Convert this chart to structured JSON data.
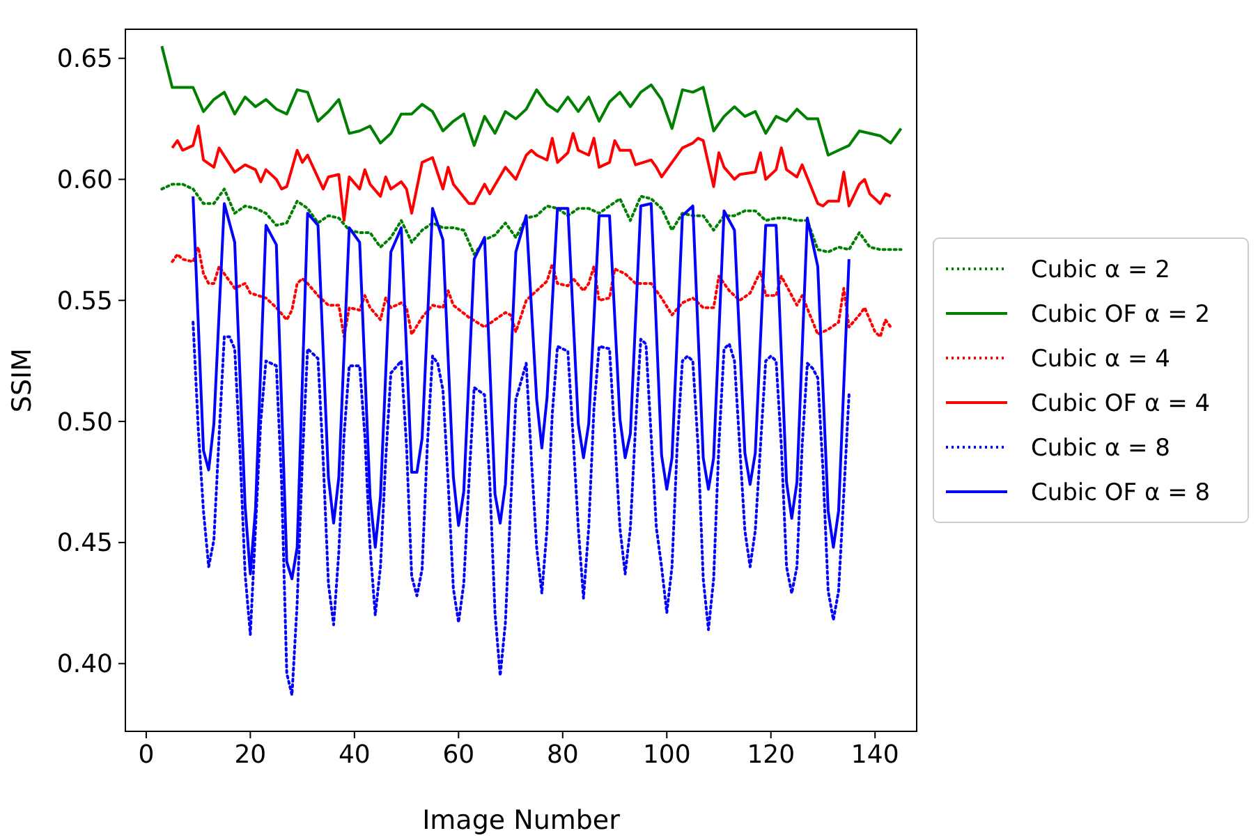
{
  "chart_data": {
    "type": "line",
    "xlabel": "Image Number",
    "ylabel": "SSIM",
    "xlim": [
      -4,
      148
    ],
    "ylim": [
      0.372,
      0.662
    ],
    "xticks": [
      0,
      20,
      40,
      60,
      80,
      100,
      120,
      140
    ],
    "yticks": [
      {
        "value": 0.4,
        "label": "0.40"
      },
      {
        "value": 0.45,
        "label": "0.45"
      },
      {
        "value": 0.5,
        "label": "0.50"
      },
      {
        "value": 0.55,
        "label": "0.55"
      },
      {
        "value": 0.6,
        "label": "0.60"
      },
      {
        "value": 0.65,
        "label": "0.65"
      }
    ],
    "grid": false,
    "legend": "right",
    "marker": "none",
    "series": [
      {
        "name": "Cubic α = 2",
        "color": "#008000",
        "line_style": "dotted",
        "x": [
          3,
          5,
          7,
          9,
          10,
          11,
          13,
          15,
          17,
          19,
          21,
          23,
          25,
          27,
          29,
          31,
          33,
          35,
          37,
          39,
          41,
          43,
          45,
          47,
          49,
          51,
          53,
          55,
          57,
          59,
          61,
          63,
          65,
          67,
          69,
          71,
          73,
          75,
          77,
          79,
          81,
          83,
          85,
          87,
          89,
          91,
          93,
          95,
          97,
          99,
          101,
          103,
          105,
          107,
          109,
          111,
          113,
          115,
          117,
          119,
          121,
          123,
          125,
          127,
          129,
          131,
          133,
          135,
          137,
          139,
          141,
          143,
          145
        ],
        "values": [
          0.596,
          0.598,
          0.598,
          0.596,
          0.593,
          0.59,
          0.59,
          0.596,
          0.586,
          0.589,
          0.588,
          0.586,
          0.581,
          0.582,
          0.591,
          0.588,
          0.582,
          0.585,
          0.584,
          0.579,
          0.578,
          0.578,
          0.572,
          0.576,
          0.583,
          0.574,
          0.579,
          0.582,
          0.58,
          0.58,
          0.579,
          0.569,
          0.575,
          0.577,
          0.582,
          0.576,
          0.584,
          0.585,
          0.589,
          0.588,
          0.585,
          0.588,
          0.588,
          0.586,
          0.589,
          0.592,
          0.583,
          0.593,
          0.592,
          0.588,
          0.579,
          0.586,
          0.585,
          0.585,
          0.579,
          0.585,
          0.585,
          0.587,
          0.587,
          0.583,
          0.584,
          0.584,
          0.583,
          0.583,
          0.571,
          0.57,
          0.572,
          0.571,
          0.578,
          0.572,
          0.571,
          0.571,
          0.571
        ]
      },
      {
        "name": "Cubic OF α = 2",
        "color": "#008000",
        "line_style": "solid",
        "x": [
          3,
          5,
          7,
          9,
          11,
          13,
          15,
          17,
          19,
          21,
          23,
          25,
          27,
          29,
          31,
          33,
          35,
          37,
          39,
          41,
          43,
          45,
          47,
          49,
          51,
          53,
          55,
          57,
          59,
          61,
          63,
          65,
          67,
          69,
          71,
          73,
          75,
          77,
          79,
          81,
          83,
          85,
          87,
          89,
          91,
          93,
          95,
          97,
          99,
          101,
          103,
          105,
          107,
          109,
          111,
          113,
          115,
          117,
          119,
          121,
          123,
          125,
          127,
          129,
          131,
          133,
          135,
          137,
          139,
          141,
          143,
          145
        ],
        "values": [
          0.655,
          0.638,
          0.638,
          0.638,
          0.628,
          0.633,
          0.636,
          0.627,
          0.634,
          0.63,
          0.633,
          0.629,
          0.627,
          0.637,
          0.636,
          0.624,
          0.628,
          0.633,
          0.619,
          0.62,
          0.622,
          0.615,
          0.619,
          0.627,
          0.627,
          0.631,
          0.628,
          0.62,
          0.624,
          0.627,
          0.614,
          0.626,
          0.619,
          0.628,
          0.625,
          0.629,
          0.637,
          0.631,
          0.628,
          0.634,
          0.628,
          0.634,
          0.624,
          0.632,
          0.636,
          0.63,
          0.636,
          0.639,
          0.633,
          0.621,
          0.637,
          0.636,
          0.638,
          0.62,
          0.626,
          0.63,
          0.626,
          0.628,
          0.619,
          0.626,
          0.624,
          0.629,
          0.625,
          0.625,
          0.61,
          0.612,
          0.614,
          0.62,
          0.619,
          0.618,
          0.615,
          0.621
        ]
      },
      {
        "name": "Cubic α = 4",
        "color": "#ff0000",
        "line_style": "dotted",
        "x": [
          5,
          6,
          7,
          9,
          10,
          11,
          12,
          13,
          14,
          15,
          17,
          19,
          20,
          23,
          25,
          27,
          28,
          29,
          30,
          31,
          33,
          35,
          37,
          38,
          39,
          41,
          42,
          43,
          45,
          46,
          47,
          49,
          50,
          51,
          53,
          55,
          57,
          58,
          59,
          62,
          65,
          67,
          69,
          70,
          71,
          73,
          75,
          77,
          78,
          79,
          81,
          82,
          84,
          85,
          86,
          87,
          89,
          90,
          92,
          94,
          97,
          99,
          101,
          103,
          105,
          107,
          109,
          110,
          112,
          114,
          116,
          118,
          119,
          121,
          122,
          125,
          126,
          129,
          131,
          133,
          134,
          135,
          137,
          138,
          140,
          141,
          142,
          143
        ],
        "values": [
          0.566,
          0.569,
          0.567,
          0.566,
          0.572,
          0.561,
          0.557,
          0.557,
          0.564,
          0.561,
          0.555,
          0.557,
          0.553,
          0.551,
          0.547,
          0.542,
          0.546,
          0.557,
          0.559,
          0.557,
          0.552,
          0.548,
          0.548,
          0.535,
          0.547,
          0.546,
          0.552,
          0.547,
          0.542,
          0.551,
          0.547,
          0.549,
          0.547,
          0.536,
          0.543,
          0.548,
          0.547,
          0.554,
          0.548,
          0.543,
          0.539,
          0.542,
          0.545,
          0.544,
          0.537,
          0.55,
          0.554,
          0.558,
          0.565,
          0.557,
          0.556,
          0.559,
          0.554,
          0.557,
          0.564,
          0.55,
          0.551,
          0.563,
          0.561,
          0.557,
          0.557,
          0.551,
          0.544,
          0.549,
          0.551,
          0.547,
          0.547,
          0.56,
          0.554,
          0.55,
          0.553,
          0.562,
          0.552,
          0.552,
          0.56,
          0.548,
          0.552,
          0.536,
          0.538,
          0.541,
          0.555,
          0.539,
          0.544,
          0.547,
          0.537,
          0.535,
          0.542,
          0.539
        ]
      },
      {
        "name": "Cubic OF α = 4",
        "color": "#ff0000",
        "line_style": "solid",
        "x": [
          5,
          6,
          7,
          9,
          10,
          11,
          13,
          14,
          17,
          19,
          21,
          22,
          23,
          25,
          26,
          27,
          29,
          30,
          31,
          34,
          35,
          37,
          38,
          39,
          41,
          42,
          43,
          45,
          46,
          47,
          49,
          50,
          51,
          53,
          55,
          57,
          58,
          59,
          62,
          63,
          65,
          66,
          69,
          71,
          73,
          74,
          75,
          77,
          78,
          79,
          81,
          82,
          83,
          85,
          86,
          87,
          89,
          90,
          91,
          93,
          94,
          97,
          98,
          99,
          101,
          103,
          105,
          106,
          107,
          109,
          110,
          111,
          113,
          114,
          117,
          118,
          119,
          121,
          122,
          123,
          125,
          126,
          129,
          130,
          131,
          133,
          134,
          135,
          137,
          138,
          139,
          141,
          142,
          143
        ],
        "values": [
          0.613,
          0.616,
          0.612,
          0.614,
          0.622,
          0.608,
          0.605,
          0.613,
          0.603,
          0.606,
          0.604,
          0.599,
          0.604,
          0.6,
          0.596,
          0.597,
          0.612,
          0.607,
          0.61,
          0.596,
          0.601,
          0.602,
          0.583,
          0.601,
          0.596,
          0.604,
          0.598,
          0.593,
          0.601,
          0.596,
          0.599,
          0.596,
          0.586,
          0.607,
          0.609,
          0.596,
          0.605,
          0.598,
          0.59,
          0.59,
          0.598,
          0.594,
          0.605,
          0.6,
          0.61,
          0.612,
          0.61,
          0.608,
          0.617,
          0.607,
          0.611,
          0.619,
          0.612,
          0.61,
          0.617,
          0.605,
          0.607,
          0.616,
          0.612,
          0.612,
          0.606,
          0.608,
          0.605,
          0.601,
          0.607,
          0.613,
          0.615,
          0.617,
          0.616,
          0.597,
          0.611,
          0.605,
          0.6,
          0.602,
          0.603,
          0.611,
          0.6,
          0.604,
          0.613,
          0.604,
          0.601,
          0.606,
          0.59,
          0.589,
          0.591,
          0.591,
          0.603,
          0.589,
          0.598,
          0.6,
          0.594,
          0.59,
          0.594,
          0.593
        ]
      },
      {
        "name": "Cubic α = 8",
        "color": "#0000ff",
        "line_style": "dotted",
        "x": [
          9,
          10,
          11,
          12,
          13,
          14,
          15,
          16,
          17,
          18,
          19,
          20,
          21,
          22,
          23,
          25,
          26,
          27,
          28,
          29,
          30,
          31,
          33,
          34,
          35,
          36,
          37,
          38,
          39,
          41,
          42,
          43,
          44,
          45,
          46,
          47,
          49,
          50,
          51,
          52,
          53,
          54,
          55,
          56,
          57,
          58,
          59,
          60,
          61,
          62,
          63,
          65,
          66,
          67,
          68,
          69,
          70,
          71,
          73,
          74,
          75,
          76,
          77,
          78,
          79,
          81,
          82,
          83,
          84,
          85,
          86,
          87,
          89,
          90,
          91,
          92,
          93,
          94,
          95,
          96,
          97,
          98,
          99,
          100,
          101,
          102,
          103,
          104,
          105,
          106,
          107,
          108,
          109,
          110,
          111,
          112,
          113,
          114,
          115,
          116,
          117,
          118,
          119,
          120,
          121,
          122,
          123,
          124,
          125,
          126,
          127,
          128,
          129,
          130,
          131,
          132,
          133,
          134,
          135
        ],
        "values": [
          0.541,
          0.497,
          0.463,
          0.44,
          0.451,
          0.494,
          0.535,
          0.535,
          0.53,
          0.488,
          0.437,
          0.412,
          0.456,
          0.5,
          0.525,
          0.523,
          0.475,
          0.396,
          0.387,
          0.425,
          0.484,
          0.53,
          0.526,
          0.484,
          0.433,
          0.416,
          0.446,
          0.494,
          0.523,
          0.523,
          0.494,
          0.448,
          0.42,
          0.44,
          0.484,
          0.52,
          0.525,
          0.49,
          0.436,
          0.428,
          0.439,
          0.49,
          0.527,
          0.524,
          0.513,
          0.475,
          0.431,
          0.417,
          0.433,
          0.475,
          0.514,
          0.511,
          0.475,
          0.421,
          0.395,
          0.417,
          0.465,
          0.509,
          0.524,
          0.484,
          0.448,
          0.429,
          0.456,
          0.503,
          0.531,
          0.529,
          0.494,
          0.456,
          0.427,
          0.456,
          0.505,
          0.531,
          0.53,
          0.494,
          0.456,
          0.437,
          0.456,
          0.498,
          0.534,
          0.532,
          0.494,
          0.456,
          0.44,
          0.421,
          0.44,
          0.49,
          0.525,
          0.527,
          0.525,
          0.49,
          0.435,
          0.414,
          0.435,
          0.49,
          0.53,
          0.532,
          0.525,
          0.49,
          0.455,
          0.44,
          0.455,
          0.49,
          0.525,
          0.527,
          0.525,
          0.49,
          0.44,
          0.429,
          0.44,
          0.49,
          0.524,
          0.522,
          0.518,
          0.48,
          0.43,
          0.418,
          0.43,
          0.47,
          0.511
        ]
      },
      {
        "name": "Cubic OF α = 8",
        "color": "#0000ff",
        "line_style": "solid",
        "x": [
          9,
          11,
          12,
          13,
          15,
          17,
          19,
          20,
          21,
          23,
          25,
          27,
          28,
          29,
          31,
          33,
          35,
          36,
          37,
          39,
          41,
          43,
          44,
          45,
          47,
          49,
          51,
          52,
          53,
          55,
          57,
          59,
          60,
          61,
          63,
          65,
          67,
          68,
          69,
          71,
          73,
          75,
          76,
          77,
          79,
          81,
          83,
          84,
          85,
          87,
          89,
          91,
          92,
          93,
          95,
          97,
          99,
          100,
          101,
          103,
          105,
          107,
          108,
          109,
          111,
          113,
          115,
          116,
          117,
          119,
          121,
          123,
          124,
          125,
          127,
          129,
          131,
          132,
          133,
          135
        ],
        "values": [
          0.593,
          0.488,
          0.48,
          0.499,
          0.59,
          0.574,
          0.465,
          0.437,
          0.464,
          0.581,
          0.573,
          0.442,
          0.435,
          0.448,
          0.586,
          0.581,
          0.477,
          0.458,
          0.477,
          0.58,
          0.574,
          0.469,
          0.448,
          0.469,
          0.57,
          0.58,
          0.479,
          0.479,
          0.493,
          0.588,
          0.575,
          0.477,
          0.457,
          0.471,
          0.567,
          0.576,
          0.47,
          0.458,
          0.474,
          0.57,
          0.585,
          0.509,
          0.489,
          0.51,
          0.588,
          0.588,
          0.499,
          0.485,
          0.499,
          0.585,
          0.585,
          0.501,
          0.485,
          0.495,
          0.589,
          0.59,
          0.486,
          0.472,
          0.485,
          0.585,
          0.589,
          0.485,
          0.472,
          0.485,
          0.587,
          0.579,
          0.487,
          0.474,
          0.487,
          0.581,
          0.581,
          0.475,
          0.46,
          0.475,
          0.584,
          0.564,
          0.463,
          0.448,
          0.463,
          0.567
        ]
      }
    ]
  }
}
